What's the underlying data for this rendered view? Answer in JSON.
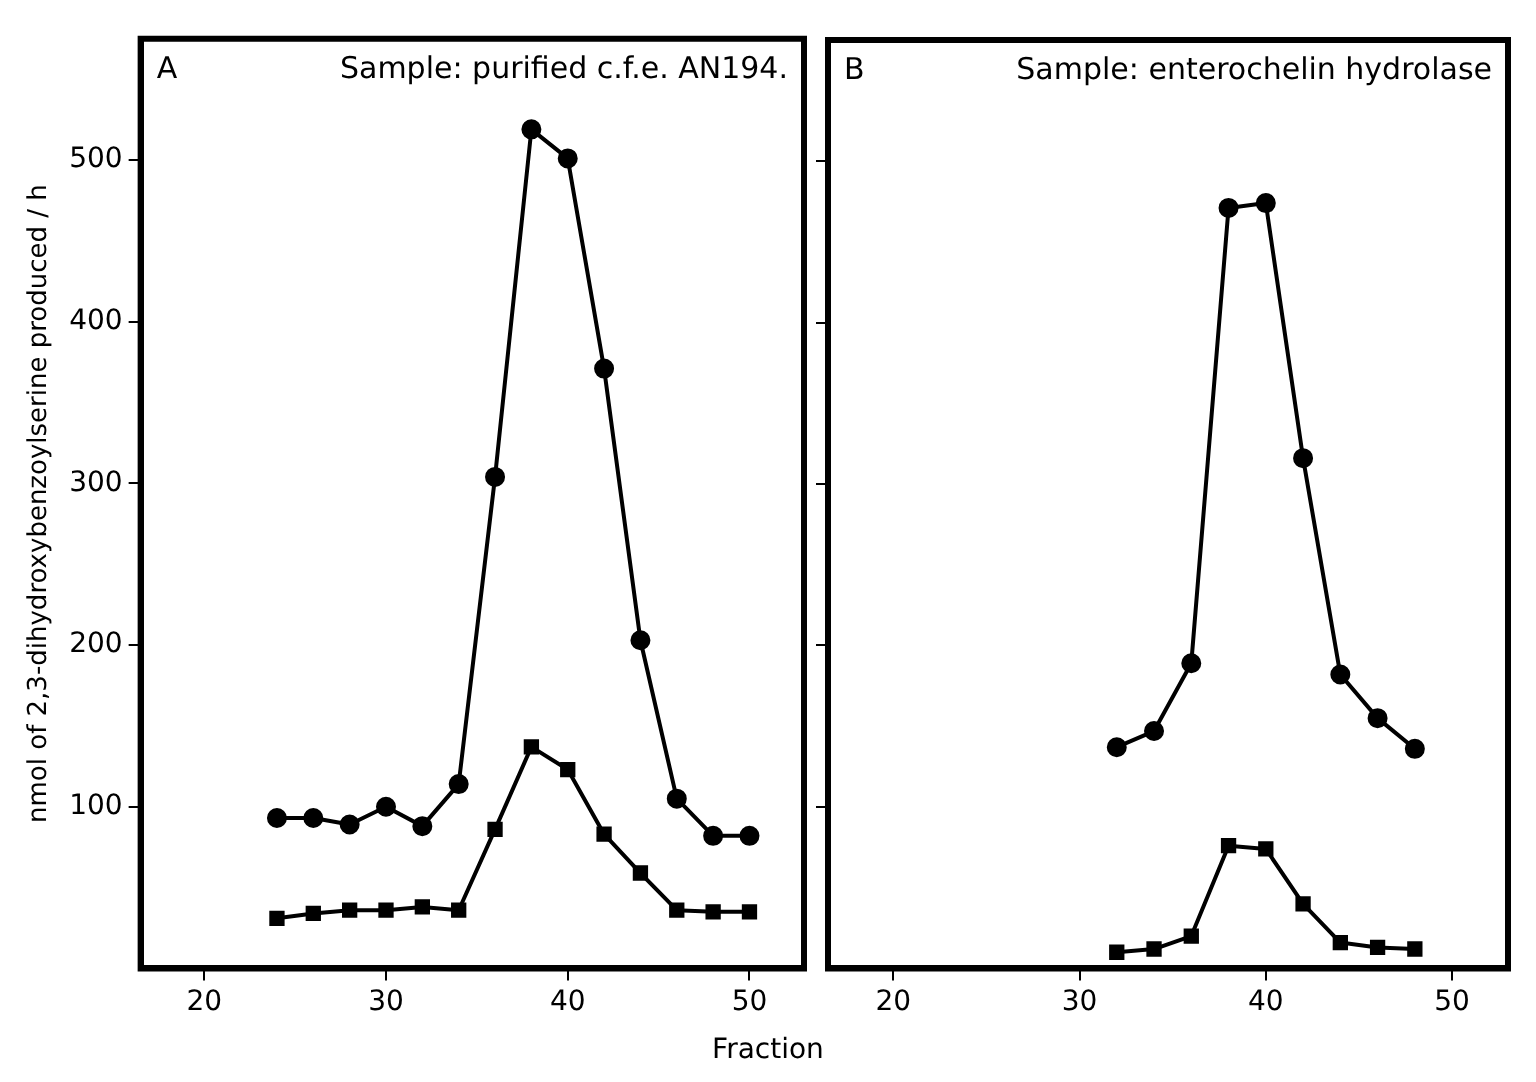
{
  "chart_data": [
    {
      "type": "line",
      "ylabel": "nmol of 2,3-dihydroxybenzoylserine produced / h",
      "xlabel": "Fraction",
      "annotations": [
        "A",
        "Sample: purified c.f.e. AN194."
      ],
      "xlim": [
        16.5,
        53
      ],
      "xticks": [
        20,
        30,
        40,
        50
      ],
      "ylim": [
        0,
        575
      ],
      "yticks": [
        100,
        200,
        300,
        400,
        500
      ],
      "grid": false,
      "legend": false,
      "series": [
        {
          "color": "#000000",
          "marker": "circle",
          "x": [
            24,
            26,
            28,
            30,
            32,
            34,
            36,
            38,
            40,
            42,
            44,
            46,
            48,
            50
          ],
          "values": [
            93,
            93,
            89,
            100,
            88,
            114,
            304,
            519,
            501,
            371,
            203,
            105,
            82,
            82
          ]
        },
        {
          "color": "#000000",
          "marker": "square",
          "x": [
            24,
            26,
            28,
            30,
            32,
            34,
            36,
            38,
            40,
            42,
            44,
            46,
            48,
            50
          ],
          "values": [
            31,
            34,
            36,
            36,
            38,
            36,
            86,
            137,
            123,
            83,
            59,
            36,
            35,
            35
          ]
        }
      ]
    },
    {
      "type": "line",
      "annotations": [
        "B",
        "Sample: enterochelin hydrolase"
      ],
      "xlim": [
        16.5,
        53
      ],
      "xticks": [
        20,
        30,
        40,
        50
      ],
      "ylim": [
        0,
        575
      ],
      "yticks": [
        100,
        200,
        300,
        400,
        500
      ],
      "tick_labels": "x",
      "grid": false,
      "legend": false,
      "series": [
        {
          "color": "#000000",
          "marker": "circle",
          "x": [
            32,
            34,
            36,
            38,
            40,
            42,
            44,
            46,
            48
          ],
          "values": [
            137,
            147,
            189,
            471,
            474,
            316,
            182,
            155,
            136
          ]
        },
        {
          "color": "#000000",
          "marker": "square",
          "x": [
            32,
            34,
            36,
            38,
            40,
            42,
            44,
            46,
            48
          ],
          "values": [
            10,
            12,
            20,
            76,
            74,
            40,
            16,
            13,
            12
          ]
        }
      ]
    }
  ]
}
